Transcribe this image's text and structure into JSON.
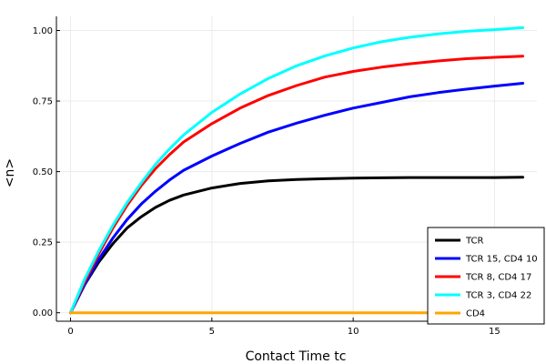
{
  "chart_data": {
    "type": "line",
    "title": "",
    "xlabel": "Contact Time tc",
    "ylabel": "<n>",
    "xlim": [
      -0.5,
      16.5
    ],
    "ylim": [
      -0.03,
      1.05
    ],
    "xticks": [
      0,
      5,
      10,
      15
    ],
    "xtick_labels": [
      "0",
      "5",
      "10",
      "15"
    ],
    "yticks": [
      0.0,
      0.25,
      0.5,
      0.75,
      1.0
    ],
    "ytick_labels": [
      "0.00",
      "0.25",
      "0.50",
      "0.75",
      "1.00"
    ],
    "grid": true,
    "legend_position": "bottom-right",
    "x": [
      0,
      0.5,
      1,
      1.5,
      2,
      2.5,
      3,
      3.5,
      4,
      5,
      6,
      7,
      8,
      9,
      10,
      11,
      12,
      13,
      14,
      15,
      16
    ],
    "series": [
      {
        "name": "TCR",
        "color": "#000000",
        "values": [
          0.0,
          0.1,
          0.18,
          0.245,
          0.3,
          0.34,
          0.373,
          0.398,
          0.417,
          0.442,
          0.458,
          0.467,
          0.472,
          0.475,
          0.477,
          0.478,
          0.479,
          0.479,
          0.479,
          0.479,
          0.48
        ]
      },
      {
        "name": "TCR 15, CD4 10",
        "color": "#0000ff",
        "values": [
          0.0,
          0.1,
          0.19,
          0.265,
          0.33,
          0.385,
          0.43,
          0.47,
          0.505,
          0.555,
          0.6,
          0.64,
          0.672,
          0.7,
          0.725,
          0.745,
          0.765,
          0.78,
          0.792,
          0.803,
          0.813
        ]
      },
      {
        "name": "TCR 8, CD4 17",
        "color": "#ff0000",
        "values": [
          0.0,
          0.11,
          0.21,
          0.3,
          0.38,
          0.45,
          0.51,
          0.56,
          0.605,
          0.67,
          0.725,
          0.77,
          0.805,
          0.835,
          0.855,
          0.87,
          0.882,
          0.892,
          0.9,
          0.905,
          0.909
        ]
      },
      {
        "name": "TCR 3, CD4 22",
        "color": "#00ffff",
        "values": [
          0.0,
          0.12,
          0.22,
          0.31,
          0.39,
          0.46,
          0.525,
          0.58,
          0.63,
          0.71,
          0.775,
          0.83,
          0.875,
          0.91,
          0.938,
          0.96,
          0.976,
          0.988,
          0.997,
          1.003,
          1.01
        ]
      },
      {
        "name": "CD4",
        "color": "#ffa500",
        "values": [
          0.0,
          0.0,
          0.0,
          0.0,
          0.0,
          0.0,
          0.0,
          0.0,
          0.0,
          0.0,
          0.0,
          0.0,
          0.0,
          0.0,
          0.0,
          0.0,
          0.0,
          0.0,
          0.0,
          0.0,
          0.0
        ]
      }
    ]
  }
}
